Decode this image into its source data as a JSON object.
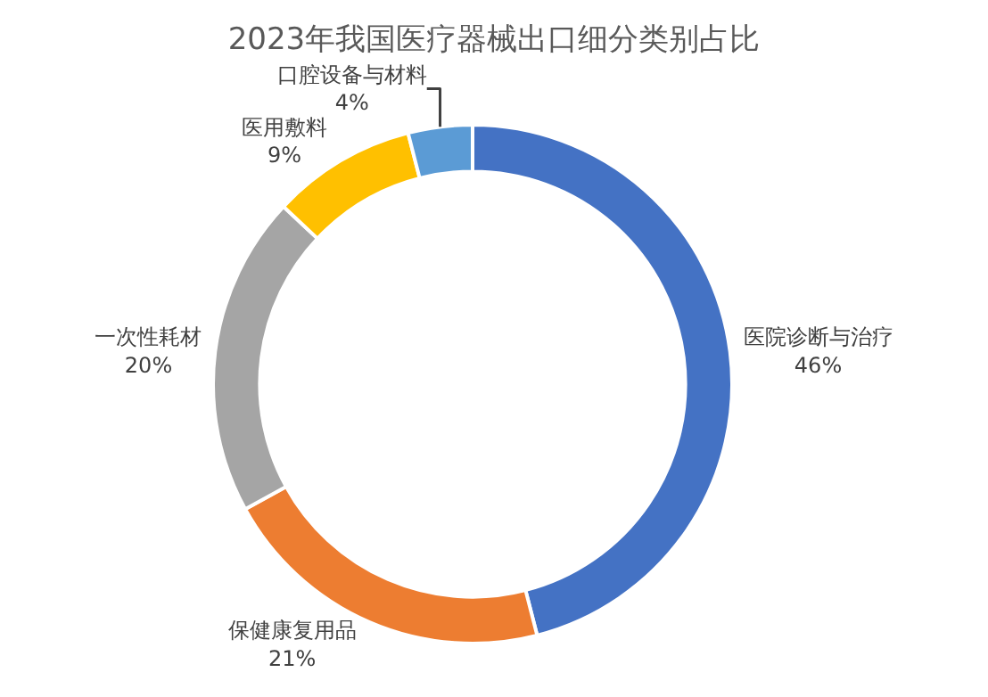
{
  "chart_data": {
    "type": "donut",
    "title": "2023年我国医疗器械出口细分类别占比",
    "categories": [
      "医院诊断与治疗",
      "保健康复用品",
      "一次性耗材",
      "医用敷料",
      "口腔设备与材料"
    ],
    "values": [
      46,
      21,
      20,
      9,
      4
    ],
    "value_labels": [
      "46%",
      "21%",
      "20%",
      "9%",
      "4%"
    ],
    "colors": [
      "#4472c4",
      "#ed7d31",
      "#a5a5a5",
      "#ffc000",
      "#5b9bd5"
    ],
    "legend": false
  }
}
